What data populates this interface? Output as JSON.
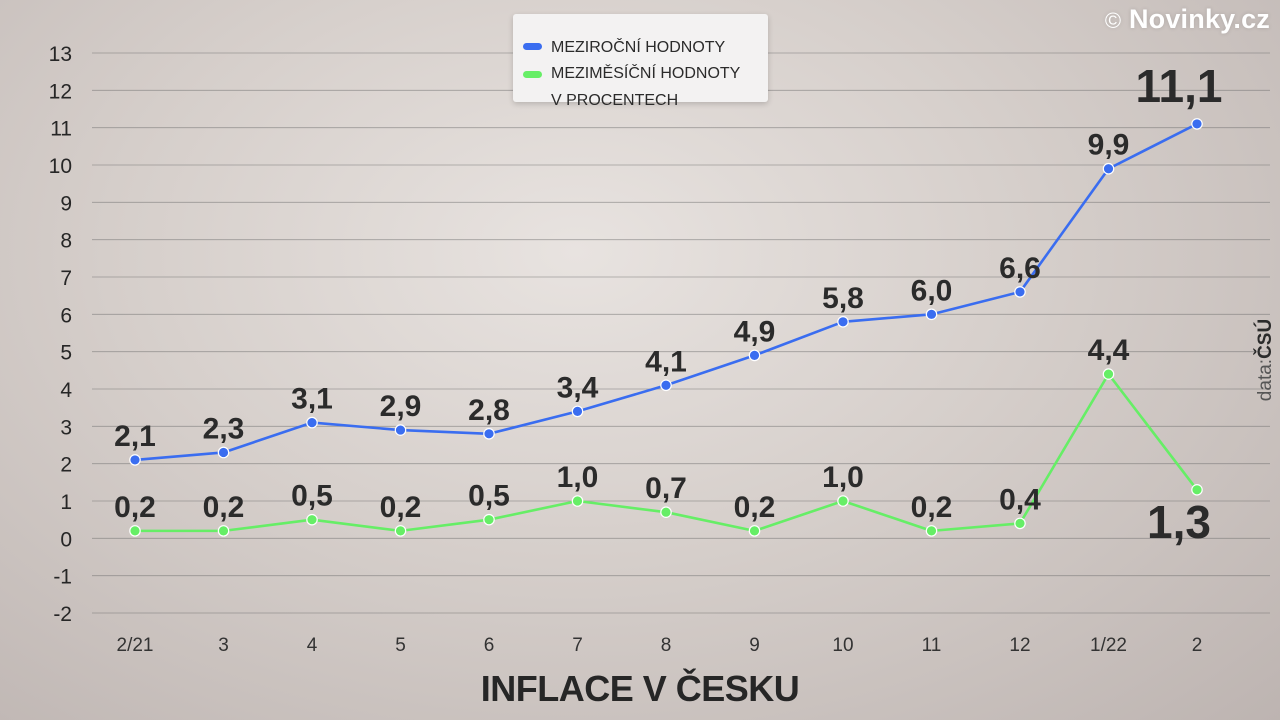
{
  "brand": {
    "copyright": "©",
    "name": "Novinky.cz"
  },
  "source": {
    "prefix": "data:",
    "name": "ČSÚ"
  },
  "legend": {
    "items": [
      {
        "lines": [
          "MEZIROČNÍ HODNOTY"
        ],
        "color": "#3a6df0"
      },
      {
        "lines": [
          "MEZIMĚSÍČNÍ HODNOTY",
          "V PROCENTECH"
        ],
        "color": "#66ee66"
      }
    ]
  },
  "chart_data": {
    "type": "line",
    "title": "INFLACE V ČESKU",
    "categories": [
      "2/21",
      "3",
      "4",
      "5",
      "6",
      "7",
      "8",
      "9",
      "10",
      "11",
      "12",
      "1/22",
      "2"
    ],
    "ylim": [
      -2,
      13
    ],
    "yticks": [
      "13",
      "12",
      "11",
      "10",
      "9",
      "8",
      "7",
      "6",
      "5",
      "4",
      "3",
      "2",
      "1",
      "0",
      "-1",
      "-2"
    ],
    "grid": true,
    "series": [
      {
        "name": "MEZIROČNÍ HODNOTY",
        "color": "#3a6df0",
        "values": [
          2.1,
          2.3,
          3.1,
          2.9,
          2.8,
          3.4,
          4.1,
          4.9,
          5.8,
          6.0,
          6.6,
          9.9,
          11.1
        ],
        "labels": [
          "2,1",
          "2,3",
          "3,1",
          "2,9",
          "2,8",
          "3,4",
          "4,1",
          "4,9",
          "5,8",
          "6,0",
          "6,6",
          "9,9",
          "11,1"
        ]
      },
      {
        "name": "MEZIMĚSÍČNÍ HODNOTY V PROCENTECH",
        "color": "#66ee66",
        "values": [
          0.2,
          0.2,
          0.5,
          0.2,
          0.5,
          1.0,
          0.7,
          0.2,
          1.0,
          0.2,
          0.4,
          4.4,
          1.3
        ],
        "labels": [
          "0,2",
          "0,2",
          "0,5",
          "0,2",
          "0,5",
          "1,0",
          "0,7",
          "0,2",
          "1,0",
          "0,2",
          "0,4",
          "4,4",
          "1,3"
        ]
      }
    ]
  }
}
